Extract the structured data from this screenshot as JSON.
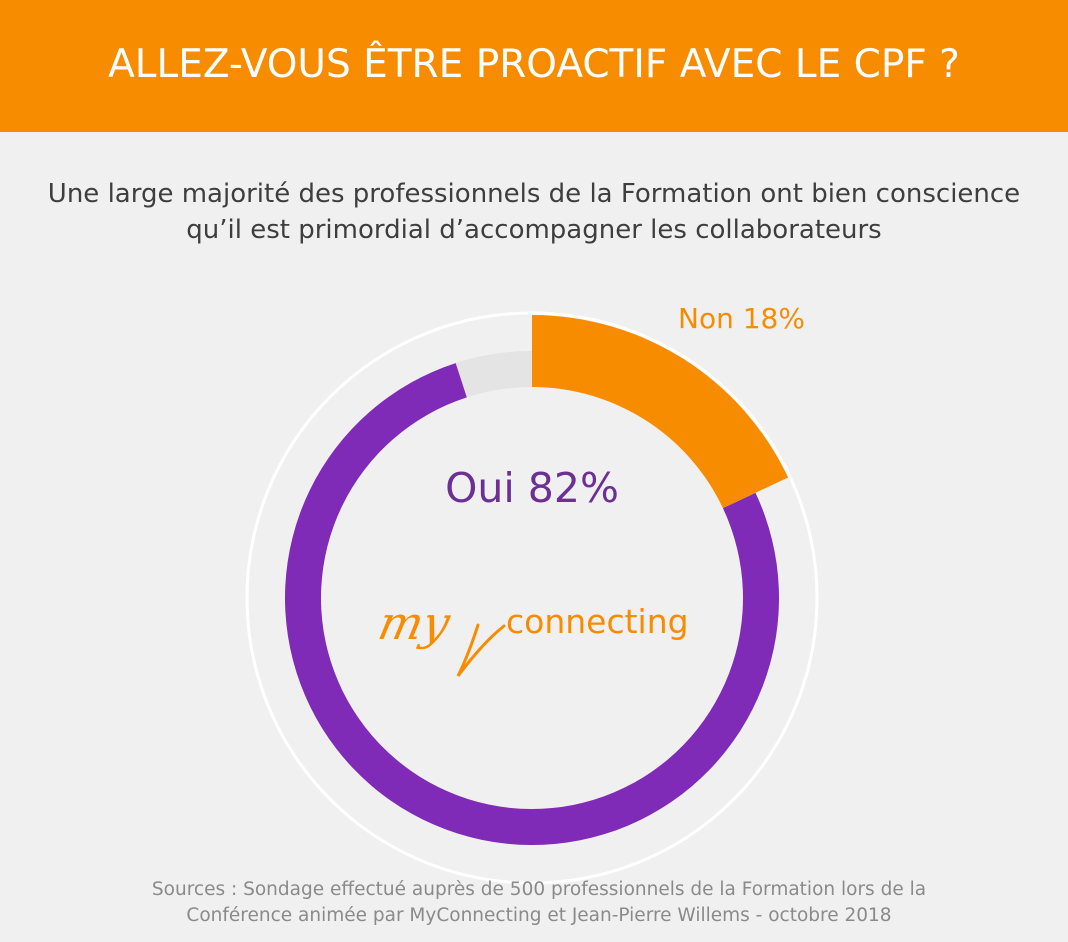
{
  "header": {
    "title": "ALLEZ-VOUS ÊTRE PROACTIF AVEC LE CPF ?"
  },
  "subtitle": {
    "line1": "Une large majorité des professionnels de la Formation ont bien conscience",
    "line2": "qu’il est primordial d’accompagner les collaborateurs"
  },
  "chart_data": {
    "type": "pie",
    "style": "donut",
    "categories": [
      "Oui",
      "Non"
    ],
    "values": [
      82,
      18
    ],
    "labels": [
      "Oui 82%",
      "Non 18%"
    ],
    "colors": [
      "#802ab8",
      "#f78c00"
    ]
  },
  "logo": {
    "script_text": "my",
    "word_text": "connecting",
    "color": "#f78c00"
  },
  "footer": {
    "line1": "Sources : Sondage effectué auprès de 500 professionnels de la Formation lors de la",
    "line2": "Conférence animée par MyConnecting et Jean-Pierre Willems - octobre 2018"
  },
  "colors": {
    "banner": "#f78c00",
    "background": "#f1f0f0",
    "oui": "#802ab8",
    "oui_label": "#6c2f94",
    "non": "#f78c00",
    "track": "#e5e4e5",
    "outer_ring": "#ffffff"
  }
}
